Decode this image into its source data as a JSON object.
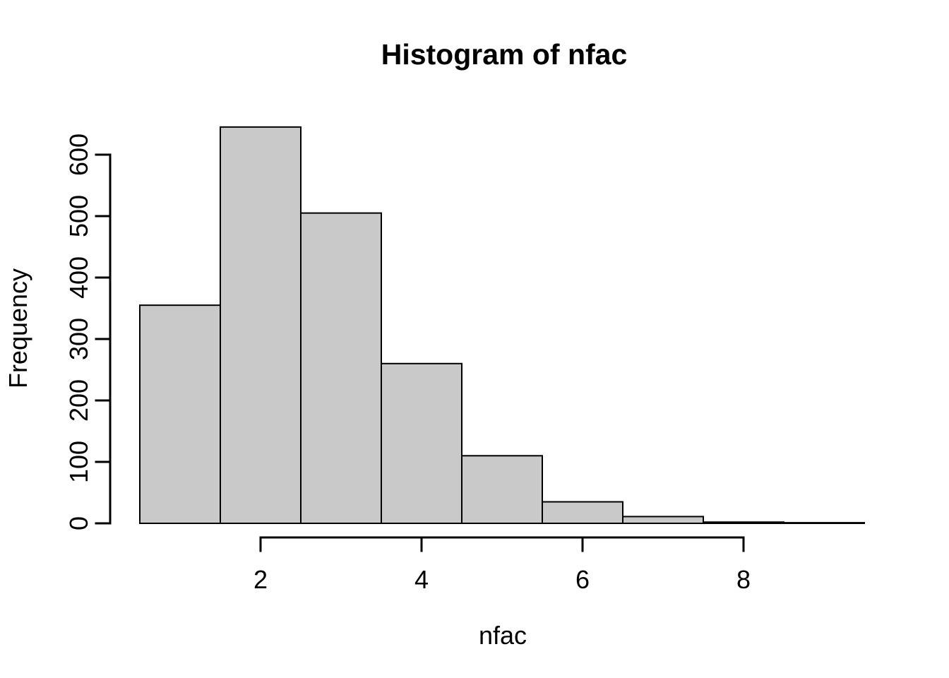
{
  "chart_data": {
    "type": "bar",
    "subtype": "histogram",
    "title": "Histogram of nfac",
    "xlabel": "nfac",
    "ylabel": "Frequency",
    "bin_breaks": [
      0.5,
      1.5,
      2.5,
      3.5,
      4.5,
      5.5,
      6.5,
      7.5,
      8.5,
      9.5
    ],
    "counts": [
      355,
      645,
      505,
      260,
      110,
      35,
      11,
      2,
      1
    ],
    "x_ticks": [
      2,
      4,
      6,
      8
    ],
    "y_ticks": [
      0,
      100,
      200,
      300,
      400,
      500,
      600
    ],
    "xlim": [
      0.5,
      9.5
    ],
    "ylim": [
      0,
      600
    ],
    "grid": false,
    "legend": false,
    "colors": {
      "background": "#FFFFFF",
      "bar_fill": "#C9C9C9",
      "bar_border": "#000000",
      "axis": "#000000",
      "text": "#000000"
    }
  }
}
